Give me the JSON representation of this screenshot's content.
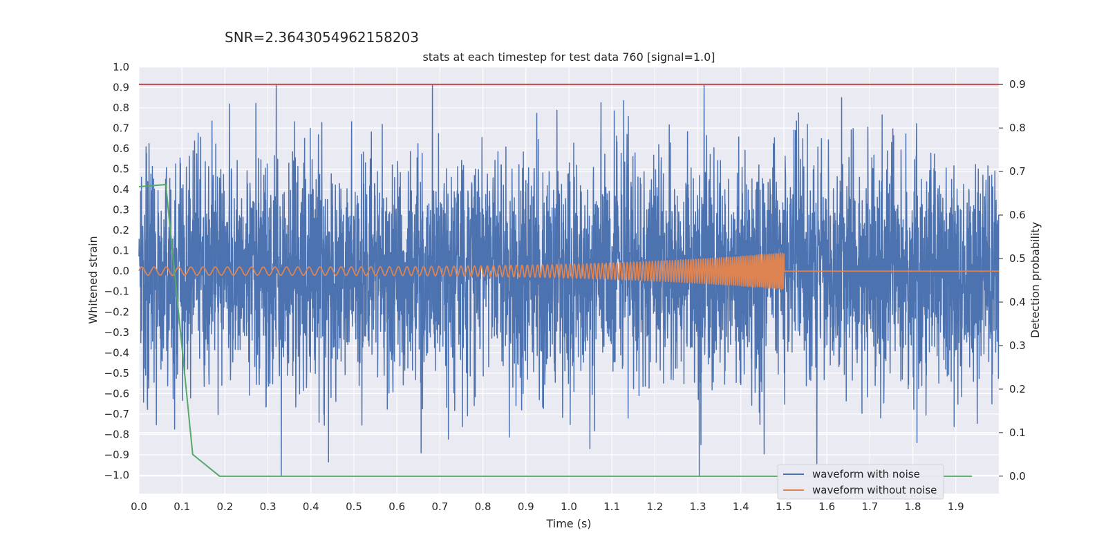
{
  "suptitle": "SNR=2.3643054962158203",
  "chart_data": {
    "type": "line",
    "title": "stats at each timestep for test data 760 [signal=1.0]",
    "xlabel": "Time (s)",
    "ylabel": "Whitened strain",
    "y2label": "Detection probability",
    "xlim": [
      0.0,
      2.0
    ],
    "ylim": [
      -1.09,
      1.0
    ],
    "y2lim": [
      -0.04,
      0.94
    ],
    "xticks": [
      "0.0",
      "0.1",
      "0.2",
      "0.3",
      "0.4",
      "0.5",
      "0.6",
      "0.7",
      "0.8",
      "0.9",
      "1.0",
      "1.1",
      "1.2",
      "1.3",
      "1.4",
      "1.5",
      "1.6",
      "1.7",
      "1.8",
      "1.9"
    ],
    "yticks": [
      "1.0",
      "0.9",
      "0.8",
      "0.7",
      "0.6",
      "0.5",
      "0.4",
      "0.3",
      "0.2",
      "0.1",
      "0.0",
      "−0.1",
      "−0.2",
      "−0.3",
      "−0.4",
      "−0.5",
      "−0.6",
      "−0.7",
      "−0.8",
      "−0.9",
      "−1.0"
    ],
    "y2ticks": [
      "0.9",
      "0.8",
      "0.7",
      "0.6",
      "0.5",
      "0.4",
      "0.3",
      "0.2",
      "0.1",
      "0.0"
    ],
    "grid": true,
    "legend_position": "lower-right",
    "colors": {
      "noise": "#4c72b0",
      "clean": "#dd8452",
      "probability": "#55a868",
      "threshold": "#c44e52",
      "background": "#eaeaf2",
      "grid": "#ffffff"
    },
    "series": [
      {
        "name": "waveform with noise",
        "axis": "left",
        "sample_rate_hz": 2048,
        "duration_s": 2.0,
        "envelope_max": 0.91,
        "envelope_min": -1.0
      },
      {
        "name": "waveform without noise",
        "axis": "left",
        "frequency_start_hz": 35,
        "frequency_end_hz": 250,
        "amplitude_start": 0.02,
        "amplitude_end": 0.09,
        "merger_time_s": 1.5,
        "after_merger_value": 0.0
      },
      {
        "axis": "right",
        "x": [
          0.0,
          0.0625,
          0.125,
          0.1875,
          0.25,
          0.5,
          0.75,
          1.0,
          1.25,
          1.5,
          1.75,
          1.9375
        ],
        "values": [
          0.665,
          0.67,
          0.05,
          0.0,
          0.0,
          0.0,
          0.0,
          0.0,
          0.0,
          0.0,
          0.0,
          0.0
        ]
      },
      {
        "axis": "right",
        "constant": 0.9,
        "x": [
          0.0,
          2.0
        ]
      }
    ],
    "legend": [
      "waveform with noise",
      "waveform without noise"
    ]
  }
}
